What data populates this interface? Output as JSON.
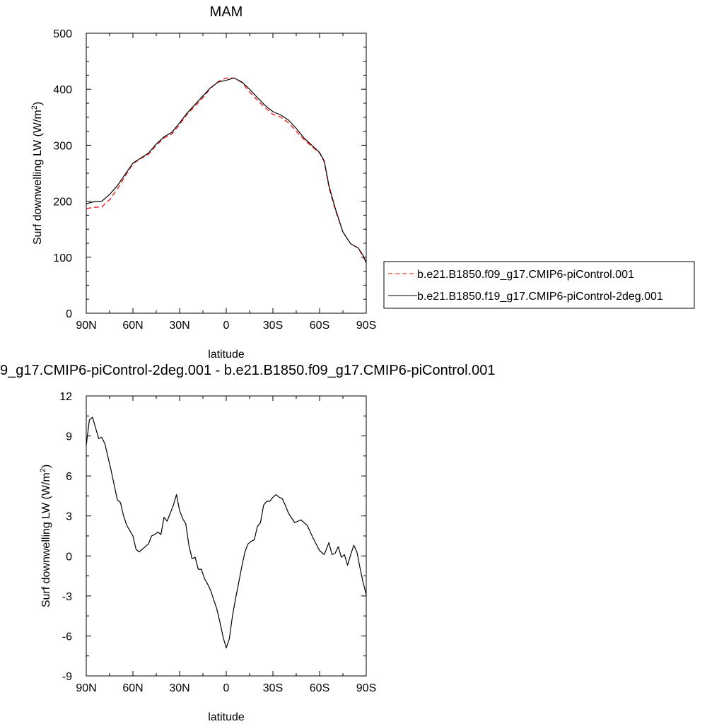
{
  "chart_data": [
    {
      "type": "line",
      "title": "MAM",
      "xlabel": "latitude",
      "ylabel": "Surf downwelling LW (W/m",
      "ylabel_sup": "2",
      "ylabel_tail": ")",
      "xlim": [
        90,
        -90
      ],
      "ylim": [
        0,
        500
      ],
      "x_ticks": [
        90,
        60,
        30,
        0,
        -30,
        -60,
        -90
      ],
      "x_tick_labels": [
        "90N",
        "60N",
        "30N",
        "0",
        "30S",
        "60S",
        "90S"
      ],
      "y_ticks": [
        0,
        100,
        200,
        300,
        400,
        500
      ],
      "y_tick_labels": [
        "0",
        "100",
        "200",
        "300",
        "400",
        "500"
      ],
      "legend_placement": "right",
      "series": [
        {
          "name": "b.e21.B1850.f09_g17.CMIP6-piControl.001",
          "color": "#ff0000",
          "dash": "dashed",
          "x": [
            90,
            85,
            80,
            75,
            70,
            65,
            60,
            55,
            50,
            45,
            40,
            35,
            30,
            25,
            20,
            15,
            10,
            5,
            0,
            -5,
            -10,
            -15,
            -20,
            -25,
            -30,
            -35,
            -40,
            -45,
            -50,
            -55,
            -60,
            -63,
            -66,
            -70,
            -75,
            -80,
            -85,
            -88,
            -90
          ],
          "y": [
            187,
            189,
            190,
            203,
            222,
            245,
            267,
            276,
            284,
            300,
            313,
            320,
            337,
            356,
            370,
            385,
            402,
            414,
            420,
            420,
            412,
            395,
            380,
            367,
            355,
            350,
            340,
            325,
            310,
            298,
            286,
            270,
            225,
            185,
            145,
            124,
            116,
            100,
            92
          ]
        },
        {
          "name": "b.e21.B1850.f19_g17.CMIP6-piControl-2deg.001",
          "color": "#000000",
          "dash": "solid",
          "x": [
            90,
            88,
            85,
            80,
            75,
            70,
            65,
            60,
            55,
            50,
            45,
            40,
            35,
            30,
            25,
            20,
            15,
            10,
            5,
            0,
            -5,
            -10,
            -15,
            -20,
            -25,
            -30,
            -35,
            -40,
            -45,
            -50,
            -55,
            -60,
            -63,
            -66,
            -70,
            -75,
            -80,
            -85,
            -88,
            -90
          ],
          "y": [
            195,
            197,
            199,
            200,
            212,
            228,
            248,
            268,
            277,
            286,
            302,
            315,
            323,
            340,
            358,
            373,
            388,
            403,
            413,
            416,
            420,
            413,
            400,
            385,
            371,
            360,
            354,
            345,
            330,
            313,
            300,
            287,
            272,
            228,
            188,
            145,
            124,
            116,
            103,
            90
          ]
        }
      ]
    },
    {
      "type": "line",
      "title": "9_g17.CMIP6-piControl-2deg.001 - b.e21.B1850.f09_g17.CMIP6-piControl.001",
      "xlabel": "latitude",
      "ylabel": "Surf downwelling LW (W/m",
      "ylabel_sup": "2",
      "ylabel_tail": ")",
      "xlim": [
        90,
        -90
      ],
      "ylim": [
        -9,
        12
      ],
      "x_ticks": [
        90,
        60,
        30,
        0,
        -30,
        -60,
        -90
      ],
      "x_tick_labels": [
        "90N",
        "60N",
        "30N",
        "0",
        "30S",
        "60S",
        "90S"
      ],
      "y_ticks": [
        -9,
        -6,
        -3,
        0,
        3,
        6,
        9,
        12
      ],
      "y_tick_labels": [
        "-9",
        "-6",
        "-3",
        "0",
        "3",
        "6",
        "9",
        "12"
      ],
      "series": [
        {
          "name": "",
          "color": "#000000",
          "dash": "solid",
          "x": [
            90,
            88,
            86,
            84,
            82,
            80,
            78,
            76,
            74,
            72,
            70,
            68,
            66,
            64,
            62,
            60,
            58,
            56,
            54,
            52,
            50,
            48,
            46,
            44,
            42,
            40,
            38,
            36,
            34,
            32,
            30,
            28,
            26,
            24,
            22,
            20,
            18,
            16,
            14,
            12,
            10,
            8,
            6,
            4,
            2,
            0,
            -2,
            -4,
            -6,
            -8,
            -10,
            -12,
            -14,
            -16,
            -18,
            -20,
            -22,
            -24,
            -26,
            -28,
            -30,
            -32,
            -34,
            -36,
            -38,
            -40,
            -44,
            -48,
            -52,
            -56,
            -60,
            -63,
            -66,
            -68,
            -70,
            -72,
            -74,
            -76,
            -78,
            -80,
            -82,
            -84,
            -86,
            -88,
            -90
          ],
          "y": [
            8.3,
            10.2,
            10.4,
            9.6,
            8.8,
            8.9,
            8.4,
            7.4,
            6.4,
            5.3,
            4.2,
            4.0,
            3.0,
            2.3,
            1.9,
            1.5,
            0.5,
            0.3,
            0.5,
            0.7,
            0.9,
            1.5,
            1.6,
            1.8,
            1.6,
            2.9,
            2.6,
            3.2,
            3.8,
            4.6,
            3.4,
            2.8,
            2.4,
            0.8,
            -0.2,
            -0.1,
            -1.0,
            -1.0,
            -1.7,
            -2.1,
            -2.6,
            -3.3,
            -4.0,
            -5.0,
            -6.1,
            -6.9,
            -6.2,
            -4.5,
            -3.2,
            -2.0,
            -0.8,
            0.3,
            0.9,
            1.1,
            1.2,
            2.2,
            2.5,
            3.8,
            4.1,
            4.1,
            4.4,
            4.6,
            4.4,
            4.3,
            3.8,
            3.2,
            2.5,
            2.7,
            2.3,
            1.3,
            0.4,
            0.1,
            1.0,
            0.1,
            0.2,
            0.7,
            -0.1,
            0.1,
            -0.7,
            0.1,
            0.8,
            0.3,
            -0.9,
            -2.0,
            -2.9
          ]
        }
      ]
    }
  ]
}
